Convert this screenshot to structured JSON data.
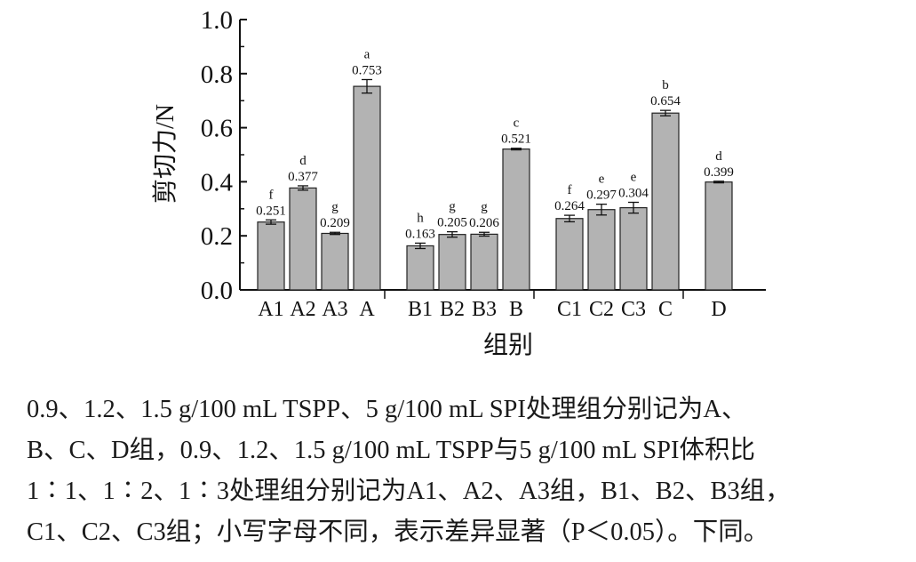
{
  "chart_data": {
    "type": "bar",
    "ylabel": "剪切力/N",
    "xlabel": "组别",
    "ylim": [
      0.0,
      1.0
    ],
    "yticks": [
      "0.0",
      "0.2",
      "0.4",
      "0.6",
      "0.8",
      "1.0"
    ],
    "bar_color": "#b3b3b3",
    "grid": false,
    "categories": [
      "A1",
      "A2",
      "A3",
      "A",
      "B1",
      "B2",
      "B3",
      "B",
      "C1",
      "C2",
      "C3",
      "C",
      "D"
    ],
    "groups": [
      [
        "A1",
        "A2",
        "A3",
        "A"
      ],
      [
        "B1",
        "B2",
        "B3",
        "B"
      ],
      [
        "C1",
        "C2",
        "C3",
        "C"
      ],
      [
        "D"
      ]
    ],
    "values": [
      0.251,
      0.377,
      0.209,
      0.753,
      0.163,
      0.205,
      0.206,
      0.521,
      0.264,
      0.297,
      0.304,
      0.654,
      0.399
    ],
    "errors": [
      0.008,
      0.008,
      0.004,
      0.025,
      0.01,
      0.01,
      0.007,
      0.003,
      0.012,
      0.02,
      0.02,
      0.01,
      0.003
    ],
    "value_labels": [
      "0.251",
      "0.377",
      "0.209",
      "0.753",
      "0.163",
      "0.205",
      "0.206",
      "0.521",
      "0.264",
      "0.297",
      "0.304",
      "0.654",
      "0.399"
    ],
    "significance": [
      "f",
      "d",
      "g",
      "a",
      "h",
      "g",
      "g",
      "c",
      "f",
      "e",
      "e",
      "b",
      "d"
    ]
  },
  "caption": {
    "lines": [
      "0.9、1.2、1.5 g/100 mL TSPP、5 g/100 mL SPI处理组分别记为A、",
      "B、C、D组，0.9、1.2、1.5 g/100 mL TSPP与5 g/100 mL SPI体积比",
      "1∶1、1∶2、1∶3处理组分别记为A1、A2、A3组，B1、B2、B3组，",
      "C1、C2、C3组；小写字母不同，表示差异显著（P＜0.05）。下同。"
    ]
  }
}
